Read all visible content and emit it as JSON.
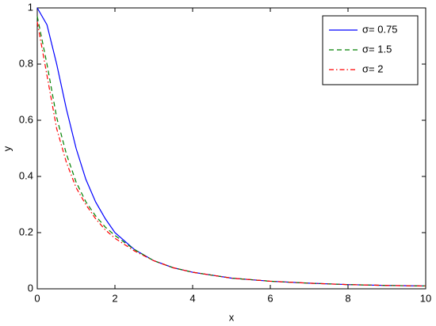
{
  "chart_data": {
    "type": "line",
    "xlabel": "x",
    "ylabel": "y",
    "x": [
      0,
      0.25,
      0.5,
      0.75,
      1,
      1.25,
      1.5,
      1.75,
      2,
      2.5,
      3,
      3.5,
      4,
      5,
      6,
      7,
      8,
      9,
      10
    ],
    "series": [
      {
        "name": "σ= 0.75",
        "color": "#0000ff",
        "linestyle": "solid",
        "values": [
          1,
          0.94,
          0.8,
          0.64,
          0.5,
          0.39,
          0.31,
          0.25,
          0.2,
          0.14,
          0.1,
          0.075,
          0.059,
          0.038,
          0.027,
          0.02,
          0.015,
          0.012,
          0.01
        ]
      },
      {
        "name": "σ= 1.5",
        "color": "#008000",
        "linestyle": "dashed",
        "values": [
          0.97,
          0.8,
          0.61,
          0.48,
          0.38,
          0.31,
          0.26,
          0.22,
          0.19,
          0.14,
          0.1,
          0.075,
          0.059,
          0.038,
          0.027,
          0.02,
          0.015,
          0.012,
          0.01
        ]
      },
      {
        "name": "σ= 2",
        "color": "#ff0000",
        "linestyle": "dashdot",
        "values": [
          0.95,
          0.76,
          0.57,
          0.45,
          0.36,
          0.3,
          0.25,
          0.21,
          0.18,
          0.135,
          0.1,
          0.075,
          0.059,
          0.038,
          0.027,
          0.02,
          0.015,
          0.012,
          0.01
        ]
      }
    ],
    "xlim": [
      0,
      10
    ],
    "xticks": [
      0,
      2,
      4,
      6,
      8,
      10
    ],
    "ylim": [
      0,
      1
    ],
    "yticks": [
      0,
      0.2,
      0.4,
      0.6,
      0.8,
      1
    ],
    "grid": false,
    "legend_position": "upper-right"
  }
}
